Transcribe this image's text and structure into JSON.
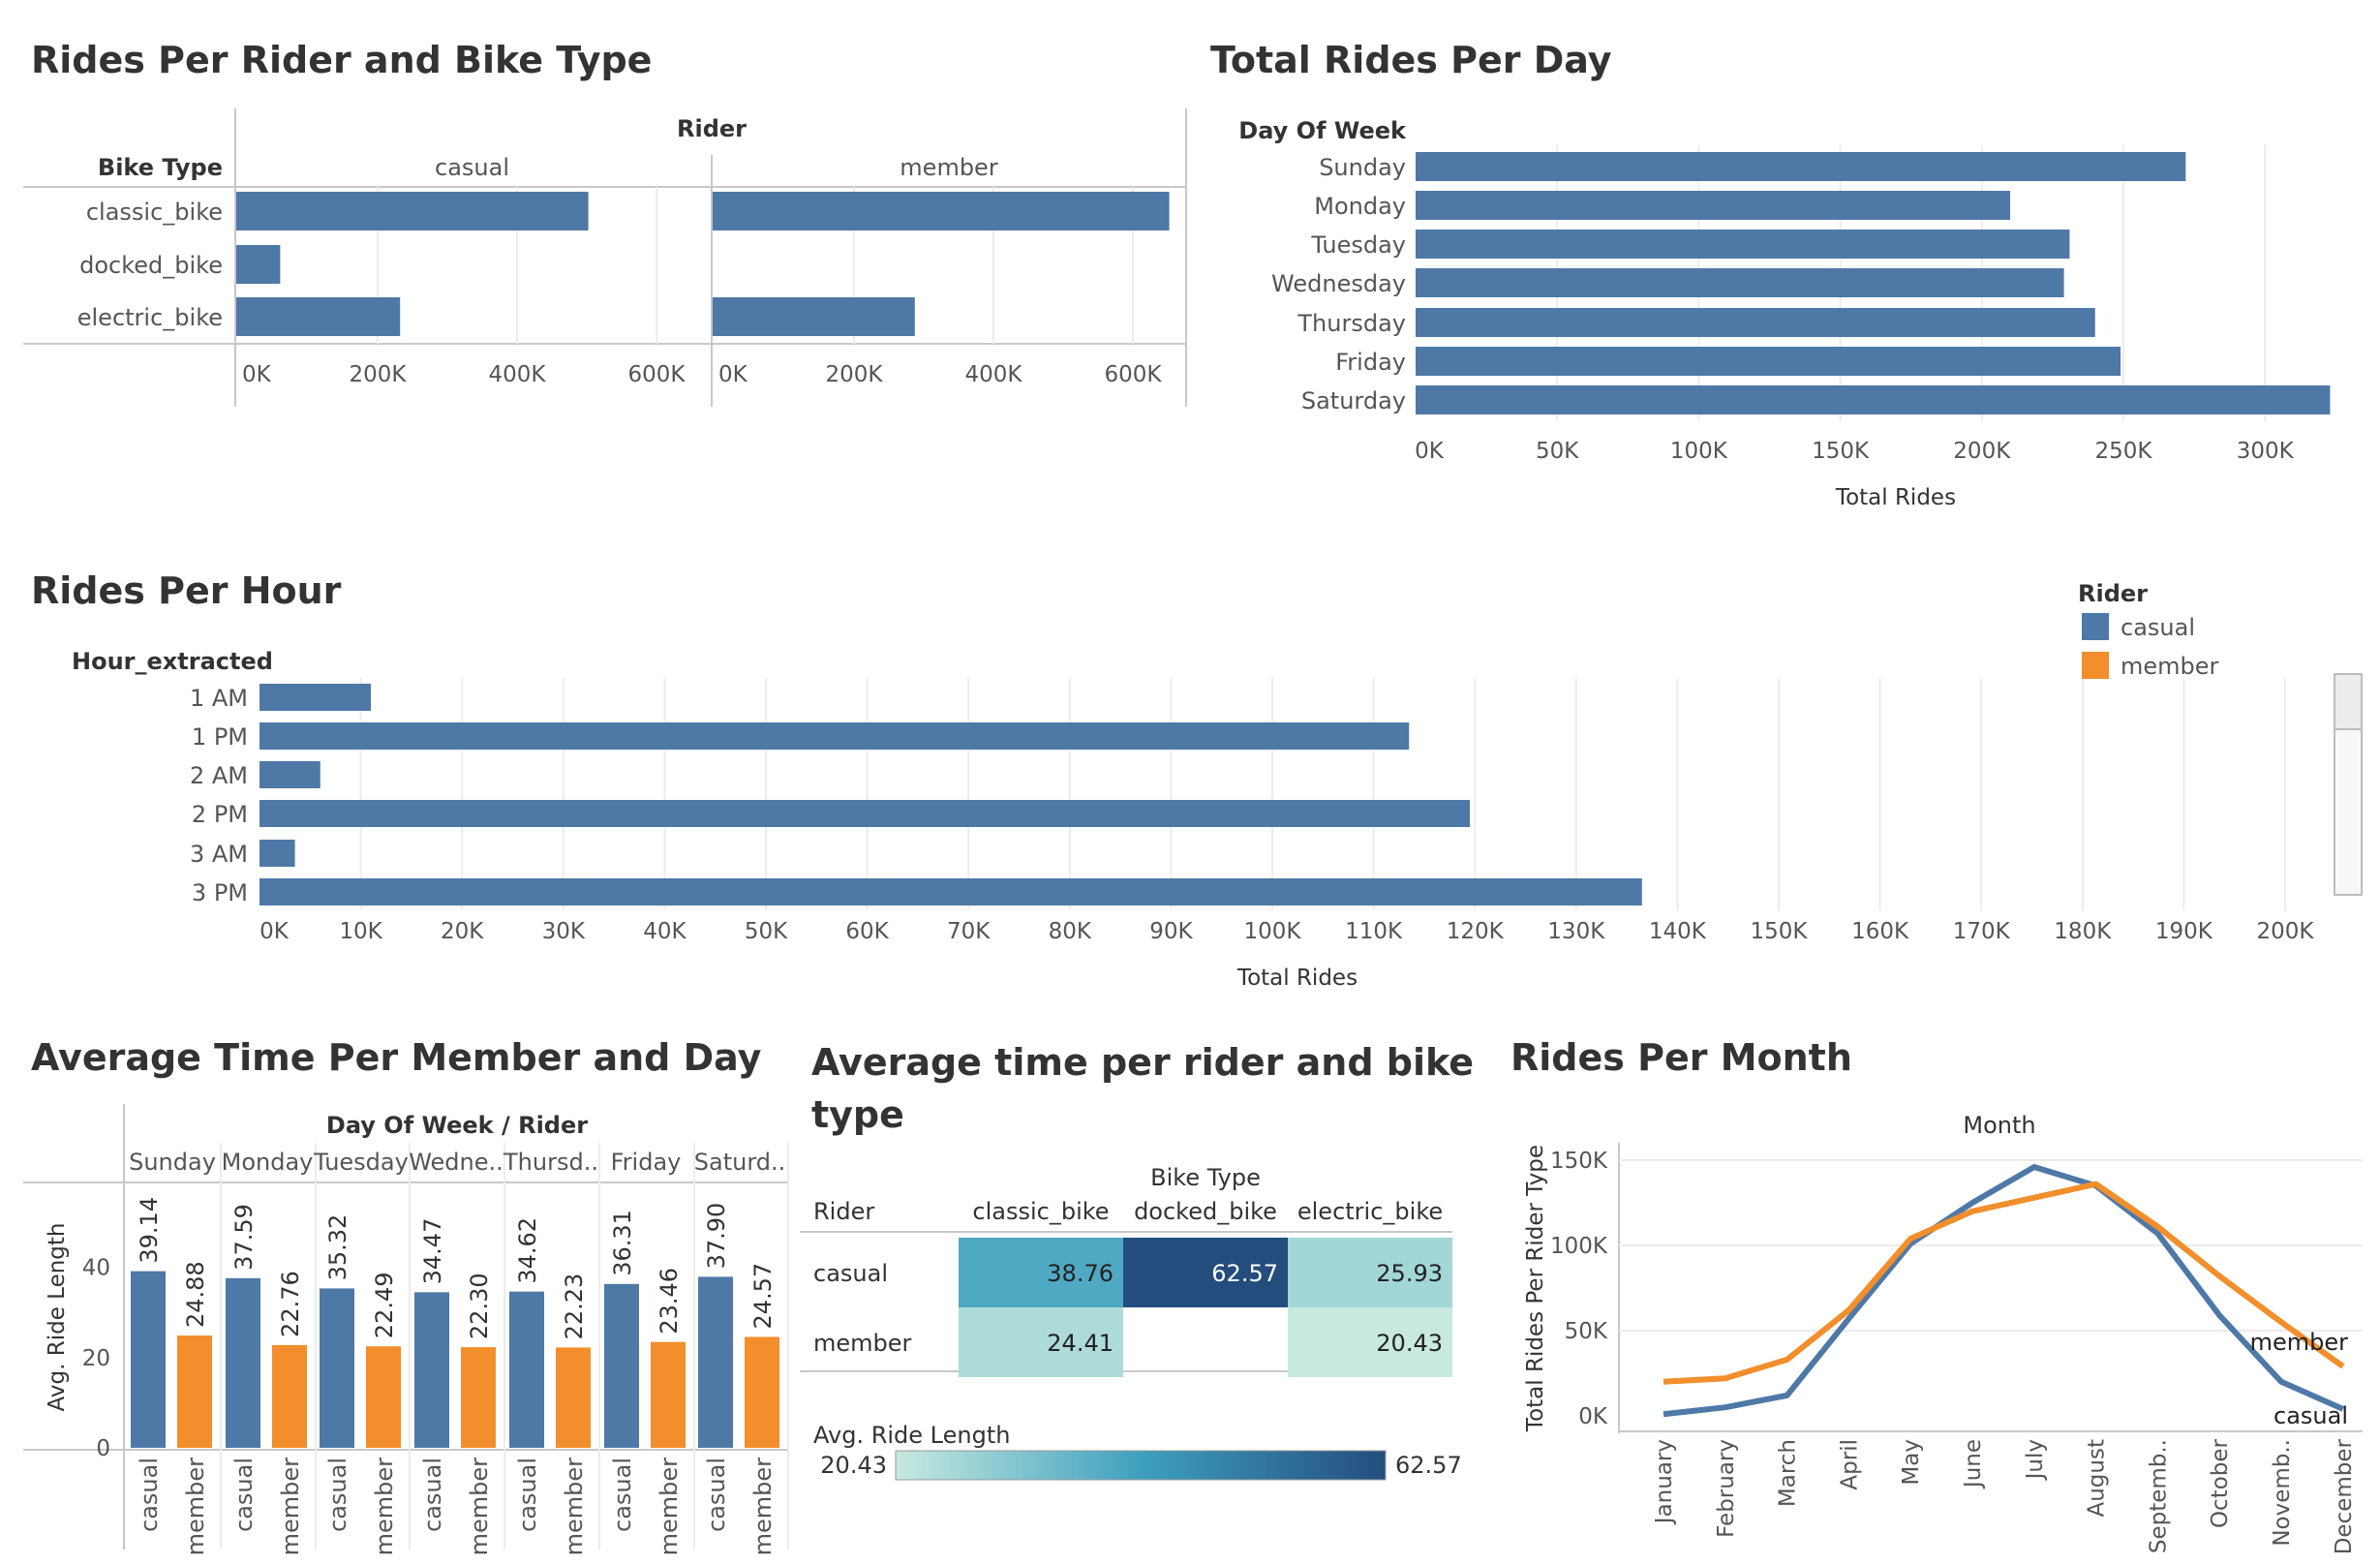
{
  "colors": {
    "casual": "#4e79a7",
    "member": "#f28e2b",
    "grid": "#ececec",
    "axis": "#c8c8c8",
    "text": "#555555"
  },
  "titles": {
    "bike_type": "Rides Per Rider and Bike Type",
    "day": "Total Rides Per Day",
    "hour": "Rides Per Hour",
    "avg_day": "Average Time Per Member and Day",
    "avg_bike_line1": "Average time per rider and bike",
    "avg_bike_line2": "type",
    "month": "Rides Per Month"
  },
  "legend": {
    "title": "Rider",
    "items": [
      "casual",
      "member"
    ]
  },
  "chart_data": [
    {
      "id": "bike_type",
      "type": "bar",
      "column_header": "Rider",
      "row_header": "Bike Type",
      "panels": [
        "casual",
        "member"
      ],
      "categories": [
        "classic_bike",
        "docked_bike",
        "electric_bike"
      ],
      "series": [
        {
          "name": "casual",
          "values": [
            505000,
            63000,
            235000
          ]
        },
        {
          "name": "member",
          "values": [
            655000,
            0,
            290000
          ]
        }
      ],
      "xticks": [
        "0K",
        "200K",
        "400K",
        "600K"
      ],
      "xlim": [
        0,
        690000
      ]
    },
    {
      "id": "day",
      "type": "bar",
      "row_header": "Day Of Week",
      "categories": [
        "Sunday",
        "Monday",
        "Tuesday",
        "Wednesday",
        "Thursday",
        "Friday",
        "Saturday"
      ],
      "values": [
        272000,
        210000,
        231000,
        229000,
        240000,
        249000,
        323000
      ],
      "xticks": [
        "0K",
        "50K",
        "100K",
        "150K",
        "200K",
        "250K",
        "300K"
      ],
      "xlabel": "Total Rides",
      "xlim": [
        0,
        335000
      ]
    },
    {
      "id": "hour",
      "type": "bar",
      "row_header": "Hour_extracted",
      "categories": [
        "1 AM",
        "1 PM",
        "2 AM",
        "2 PM",
        "3 AM",
        "3 PM"
      ],
      "values": [
        11000,
        113500,
        6000,
        119500,
        3500,
        136500
      ],
      "xticks": [
        "0K",
        "10K",
        "20K",
        "30K",
        "40K",
        "50K",
        "60K",
        "70K",
        "80K",
        "90K",
        "100K",
        "110K",
        "120K",
        "130K",
        "140K",
        "150K",
        "160K",
        "170K",
        "180K",
        "190K",
        "200K"
      ],
      "xlabel": "Total Rides",
      "xlim": [
        0,
        207000
      ]
    },
    {
      "id": "avg_day",
      "type": "bar",
      "column_header": "Day Of Week / Rider",
      "days": [
        "Sunday",
        "Monday",
        "Tuesday",
        "Wedne..",
        "Thursd..",
        "Friday",
        "Saturd.."
      ],
      "riders": [
        "casual",
        "member"
      ],
      "series": [
        {
          "name": "casual",
          "values": [
            39.14,
            37.59,
            35.32,
            34.47,
            34.62,
            36.31,
            37.9
          ]
        },
        {
          "name": "member",
          "values": [
            24.88,
            22.76,
            22.49,
            22.3,
            22.23,
            23.46,
            24.57
          ]
        }
      ],
      "labels_casual": [
        "39.14",
        "37.59",
        "35.32",
        "34.47",
        "34.62",
        "36.31",
        "37.90"
      ],
      "labels_member": [
        "24.88",
        "22.76",
        "22.49",
        "22.30",
        "22.23",
        "23.46",
        "24.57"
      ],
      "ylabel": "Avg. Ride Length",
      "yticks": [
        "0",
        "20",
        "40"
      ],
      "ylim": [
        0,
        55
      ]
    },
    {
      "id": "avg_bike",
      "type": "heatmap",
      "column_header": "Bike Type",
      "row_header": "Rider",
      "columns": [
        "classic_bike",
        "docked_bike",
        "electric_bike"
      ],
      "rows": [
        "casual",
        "member"
      ],
      "values": [
        [
          38.76,
          62.57,
          25.93
        ],
        [
          24.41,
          null,
          20.43
        ]
      ],
      "labels": [
        [
          "38.76",
          "62.57",
          "25.93"
        ],
        [
          "24.41",
          "",
          "20.43"
        ]
      ],
      "colorbar": {
        "title": "Avg. Ride Length",
        "min": "20.43",
        "max": "62.57"
      }
    },
    {
      "id": "month",
      "type": "line",
      "column_header": "Month",
      "ylabel": "Total Rides Per Rider Type",
      "categories": [
        "January",
        "February",
        "March",
        "April",
        "May",
        "June",
        "July",
        "August",
        "Septemb..",
        "October",
        "Novemb..",
        "December"
      ],
      "series": [
        {
          "name": "casual",
          "values": [
            1000,
            5000,
            12000,
            57000,
            101000,
            125000,
            146000,
            135000,
            107000,
            59000,
            20000,
            4000
          ]
        },
        {
          "name": "member",
          "values": [
            20000,
            22000,
            33000,
            62000,
            104000,
            120000,
            128000,
            136000,
            111000,
            82000,
            55000,
            29000
          ]
        }
      ],
      "yticks": [
        "0K",
        "50K",
        "100K",
        "150K"
      ],
      "ylim": [
        0,
        152000
      ]
    }
  ]
}
